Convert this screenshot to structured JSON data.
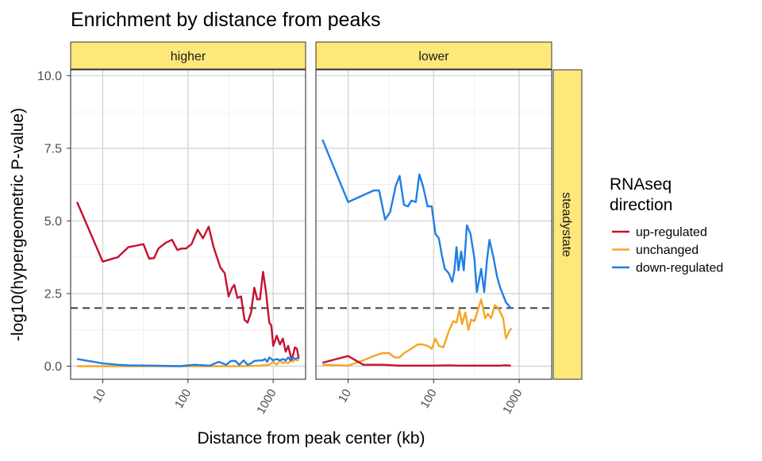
{
  "chart_data": {
    "type": "line",
    "title": "Enrichment by distance from peaks",
    "xlabel": "Distance from peak center (kb)",
    "ylabel": "-log10(hypergeometric P-value)",
    "x_scale": "log10",
    "xlim": [
      4.2,
      2400
    ],
    "ylim": [
      -0.45,
      10.2
    ],
    "x_ticks": [
      10,
      100,
      1000
    ],
    "x_tick_labels": [
      "10",
      "100",
      "1000"
    ],
    "y_ticks": [
      0,
      2.5,
      5,
      7.5,
      10
    ],
    "y_tick_labels": [
      "0.0",
      "2.5",
      "5.0",
      "7.5",
      "10.0"
    ],
    "threshold": 2,
    "row_strip": "steadystate",
    "legend": {
      "title_lines": [
        "RNAseq",
        "direction"
      ],
      "position": "right",
      "entries": [
        "up-regulated",
        "unchanged",
        "down-regulated"
      ]
    },
    "colors": {
      "up-regulated": "#c8102e",
      "unchanged": "#f5a623",
      "down-regulated": "#1f7fe5",
      "strip_fill": "#ffe87a",
      "threshold": "#555555"
    },
    "panels": [
      {
        "label": "higher",
        "series": [
          {
            "name": "up-regulated",
            "points": [
              [
                5,
                5.65
              ],
              [
                10,
                3.6
              ],
              [
                15,
                3.75
              ],
              [
                20,
                4.1
              ],
              [
                25,
                4.15
              ],
              [
                30,
                4.2
              ],
              [
                35,
                3.7
              ],
              [
                40,
                3.72
              ],
              [
                45,
                4.05
              ],
              [
                55,
                4.25
              ],
              [
                65,
                4.35
              ],
              [
                75,
                4.0
              ],
              [
                85,
                4.05
              ],
              [
                95,
                4.05
              ],
              [
                110,
                4.2
              ],
              [
                130,
                4.7
              ],
              [
                150,
                4.4
              ],
              [
                175,
                4.8
              ],
              [
                200,
                4.1
              ],
              [
                240,
                3.4
              ],
              [
                270,
                3.2
              ],
              [
                300,
                2.4
              ],
              [
                330,
                2.7
              ],
              [
                350,
                2.8
              ],
              [
                380,
                2.35
              ],
              [
                420,
                2.4
              ],
              [
                460,
                1.6
              ],
              [
                500,
                1.5
              ],
              [
                550,
                1.85
              ],
              [
                600,
                2.7
              ],
              [
                650,
                2.3
              ],
              [
                700,
                2.3
              ],
              [
                760,
                3.25
              ],
              [
                820,
                2.6
              ],
              [
                900,
                1.5
              ],
              [
                950,
                1.4
              ],
              [
                1000,
                0.7
              ],
              [
                1100,
                1.05
              ],
              [
                1200,
                0.75
              ],
              [
                1300,
                0.95
              ],
              [
                1400,
                0.5
              ],
              [
                1500,
                0.7
              ],
              [
                1650,
                0.2
              ],
              [
                1800,
                0.65
              ],
              [
                1900,
                0.6
              ],
              [
                2000,
                0.25
              ]
            ]
          },
          {
            "name": "unchanged",
            "points": [
              [
                5,
                0.0
              ],
              [
                20,
                0.0
              ],
              [
                50,
                0.0
              ],
              [
                100,
                0.0
              ],
              [
                200,
                0.0
              ],
              [
                400,
                0.0
              ],
              [
                700,
                0.02
              ],
              [
                900,
                0.05
              ],
              [
                1000,
                0.15
              ],
              [
                1100,
                0.05
              ],
              [
                1200,
                0.2
              ],
              [
                1300,
                0.1
              ],
              [
                1400,
                0.15
              ],
              [
                1500,
                0.1
              ],
              [
                1600,
                0.2
              ],
              [
                1700,
                0.15
              ],
              [
                1800,
                0.25
              ],
              [
                1900,
                0.2
              ],
              [
                2000,
                0.2
              ]
            ]
          },
          {
            "name": "down-regulated",
            "points": [
              [
                5,
                0.25
              ],
              [
                10,
                0.1
              ],
              [
                15,
                0.05
              ],
              [
                20,
                0.03
              ],
              [
                40,
                0.02
              ],
              [
                80,
                0.0
              ],
              [
                120,
                0.05
              ],
              [
                180,
                0.02
              ],
              [
                230,
                0.15
              ],
              [
                280,
                0.05
              ],
              [
                320,
                0.18
              ],
              [
                360,
                0.18
              ],
              [
                400,
                0.05
              ],
              [
                450,
                0.2
              ],
              [
                500,
                0.05
              ],
              [
                550,
                0.1
              ],
              [
                600,
                0.18
              ],
              [
                700,
                0.2
              ],
              [
                750,
                0.2
              ],
              [
                800,
                0.25
              ],
              [
                850,
                0.15
              ],
              [
                900,
                0.3
              ],
              [
                1000,
                0.2
              ],
              [
                1100,
                0.25
              ],
              [
                1200,
                0.2
              ],
              [
                1300,
                0.25
              ],
              [
                1400,
                0.2
              ],
              [
                1500,
                0.3
              ],
              [
                1600,
                0.2
              ],
              [
                1700,
                0.3
              ],
              [
                1800,
                0.25
              ],
              [
                2000,
                0.3
              ]
            ]
          }
        ]
      },
      {
        "label": "lower",
        "series": [
          {
            "name": "down-regulated",
            "points": [
              [
                5,
                7.8
              ],
              [
                10,
                5.65
              ],
              [
                20,
                6.05
              ],
              [
                23,
                6.05
              ],
              [
                27,
                5.05
              ],
              [
                31,
                5.3
              ],
              [
                36,
                6.2
              ],
              [
                40,
                6.55
              ],
              [
                45,
                5.55
              ],
              [
                50,
                5.5
              ],
              [
                55,
                5.7
              ],
              [
                62,
                5.65
              ],
              [
                68,
                6.6
              ],
              [
                75,
                6.2
              ],
              [
                85,
                5.5
              ],
              [
                95,
                5.5
              ],
              [
                105,
                4.55
              ],
              [
                115,
                4.4
              ],
              [
                125,
                3.8
              ],
              [
                135,
                3.35
              ],
              [
                150,
                3.2
              ],
              [
                165,
                2.9
              ],
              [
                175,
                3.3
              ],
              [
                185,
                4.1
              ],
              [
                195,
                3.3
              ],
              [
                210,
                3.95
              ],
              [
                225,
                3.3
              ],
              [
                245,
                4.85
              ],
              [
                270,
                4.55
              ],
              [
                300,
                3.7
              ],
              [
                320,
                2.55
              ],
              [
                360,
                3.35
              ],
              [
                390,
                2.55
              ],
              [
                420,
                3.65
              ],
              [
                450,
                4.35
              ],
              [
                500,
                3.75
              ],
              [
                550,
                3.1
              ],
              [
                600,
                2.7
              ],
              [
                700,
                2.2
              ],
              [
                800,
                2.0
              ]
            ]
          },
          {
            "name": "unchanged",
            "points": [
              [
                5,
                0.05
              ],
              [
                10,
                0.02
              ],
              [
                15,
                0.2
              ],
              [
                20,
                0.35
              ],
              [
                25,
                0.45
              ],
              [
                30,
                0.45
              ],
              [
                35,
                0.3
              ],
              [
                40,
                0.3
              ],
              [
                45,
                0.45
              ],
              [
                55,
                0.6
              ],
              [
                65,
                0.75
              ],
              [
                75,
                0.75
              ],
              [
                85,
                0.7
              ],
              [
                95,
                0.6
              ],
              [
                105,
                0.95
              ],
              [
                115,
                0.7
              ],
              [
                130,
                0.65
              ],
              [
                150,
                1.2
              ],
              [
                170,
                1.55
              ],
              [
                185,
                1.5
              ],
              [
                200,
                1.95
              ],
              [
                215,
                1.45
              ],
              [
                235,
                1.85
              ],
              [
                255,
                1.25
              ],
              [
                275,
                1.6
              ],
              [
                300,
                1.55
              ],
              [
                330,
                1.95
              ],
              [
                360,
                2.3
              ],
              [
                400,
                1.65
              ],
              [
                430,
                1.8
              ],
              [
                470,
                1.65
              ],
              [
                520,
                2.1
              ],
              [
                570,
                2.0
              ],
              [
                650,
                1.65
              ],
              [
                700,
                0.95
              ],
              [
                780,
                1.25
              ],
              [
                820,
                1.3
              ]
            ]
          },
          {
            "name": "up-regulated",
            "points": [
              [
                5,
                0.12
              ],
              [
                10,
                0.35
              ],
              [
                15,
                0.05
              ],
              [
                25,
                0.05
              ],
              [
                40,
                0.02
              ],
              [
                60,
                0.02
              ],
              [
                100,
                0.02
              ],
              [
                150,
                0.03
              ],
              [
                200,
                0.02
              ],
              [
                300,
                0.02
              ],
              [
                400,
                0.02
              ],
              [
                500,
                0.02
              ],
              [
                600,
                0.02
              ],
              [
                700,
                0.03
              ],
              [
                800,
                0.02
              ]
            ]
          }
        ]
      }
    ]
  }
}
